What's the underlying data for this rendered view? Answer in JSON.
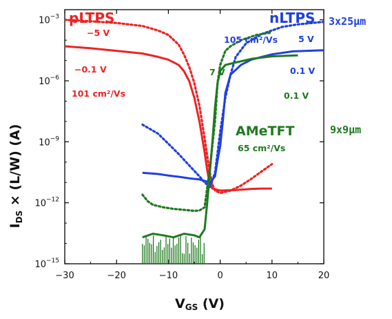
{
  "chart_data": {
    "type": "line",
    "xlabel_main": "V",
    "xlabel_sub": "GS",
    "xlabel_unit": " (V)",
    "ylabel_main_a": "I",
    "ylabel_sub": "DS",
    "ylabel_main_b": " × (L/W)  (A)",
    "xlim": [
      -30,
      20
    ],
    "ylim_log10": [
      -15,
      -2.5
    ],
    "x_ticks": [
      -30,
      -20,
      -10,
      0,
      10,
      20
    ],
    "x_tick_labels": [
      "−30",
      "−20",
      "−10",
      "0",
      "10",
      "20"
    ],
    "y_ticks_exp": [
      -3,
      -6,
      -9,
      -12,
      -15
    ],
    "y_tick_base": "10",
    "y_tick_exps": [
      "−3",
      "−6",
      "−9",
      "−12",
      "−15"
    ],
    "colors": {
      "pLTPS": "#ee2222",
      "nLTPS": "#1f3fe0",
      "AMeTFT": "#1e7a1e"
    },
    "series": [
      {
        "name": "pLTPS",
        "label_key": "pLTPS",
        "vds": "-5 V",
        "style": "dotted",
        "color": "pLTPS",
        "points": [
          [
            -30,
            0.001
          ],
          [
            -25,
            0.00085
          ],
          [
            -20,
            0.0007
          ],
          [
            -15,
            0.0005
          ],
          [
            -12,
            0.0003
          ],
          [
            -10,
            0.00018
          ],
          [
            -8,
            6e-05
          ],
          [
            -7,
            2e-05
          ],
          [
            -6,
            5e-06
          ],
          [
            -5,
            8e-07
          ],
          [
            -4,
            6e-08
          ],
          [
            -3,
            1.5e-09
          ],
          [
            -2.5,
            2e-10
          ],
          [
            -2,
            3e-11
          ],
          [
            -1.5,
            8e-12
          ],
          [
            -1,
            4e-12
          ],
          [
            0,
            3e-12
          ],
          [
            2,
            4e-12
          ],
          [
            4,
            7e-12
          ],
          [
            6,
            1.5e-11
          ],
          [
            8,
            3.5e-11
          ],
          [
            10,
            8e-11
          ]
        ]
      },
      {
        "name": "pLTPS",
        "label_key": "pLTPS",
        "vds": "-0.1 V",
        "style": "solid",
        "color": "pLTPS",
        "points": [
          [
            -30,
            5e-05
          ],
          [
            -25,
            4e-05
          ],
          [
            -20,
            3e-05
          ],
          [
            -15,
            2.2e-05
          ],
          [
            -12,
            1.5e-05
          ],
          [
            -10,
            1.1e-05
          ],
          [
            -8,
            6e-06
          ],
          [
            -7,
            3e-06
          ],
          [
            -6,
            1e-06
          ],
          [
            -5,
            1.5e-07
          ],
          [
            -4,
            1e-08
          ],
          [
            -3,
            3e-10
          ],
          [
            -2.5,
            4e-11
          ],
          [
            -2,
            8e-12
          ],
          [
            -1.5,
            5e-12
          ],
          [
            0,
            4e-12
          ],
          [
            3,
            4.2e-12
          ],
          [
            6,
            4.8e-12
          ],
          [
            8,
            5e-12
          ],
          [
            10,
            5e-12
          ]
        ]
      },
      {
        "name": "nLTPS",
        "label_key": "nLTPS",
        "vds": "5 V",
        "style": "dotted",
        "color": "nLTPS",
        "points": [
          [
            -15,
            7e-09
          ],
          [
            -12,
            2.5e-09
          ],
          [
            -10,
            8e-10
          ],
          [
            -8,
            2.5e-10
          ],
          [
            -6,
            7e-11
          ],
          [
            -4,
            2e-11
          ],
          [
            -3,
            1e-11
          ],
          [
            -2,
            6e-12
          ],
          [
            -1,
            3e-11
          ],
          [
            0,
            3e-09
          ],
          [
            1,
            1.5e-07
          ],
          [
            2,
            2e-06
          ],
          [
            3,
            1.5e-05
          ],
          [
            5,
            7e-05
          ],
          [
            8,
            0.0002
          ],
          [
            12,
            0.00045
          ],
          [
            15,
            0.0006
          ],
          [
            20,
            0.0008
          ]
        ]
      },
      {
        "name": "nLTPS",
        "label_key": "nLTPS",
        "vds": "0.1 V",
        "style": "solid",
        "color": "nLTPS",
        "points": [
          [
            -15,
            3e-11
          ],
          [
            -12,
            2.6e-11
          ],
          [
            -10,
            2.2e-11
          ],
          [
            -8,
            1.9e-11
          ],
          [
            -6,
            1.6e-11
          ],
          [
            -4,
            1.4e-11
          ],
          [
            -3,
            1.2e-11
          ],
          [
            -2,
            1e-11
          ],
          [
            -1,
            2e-11
          ],
          [
            -0.5,
            1.2e-10
          ],
          [
            0,
            6e-10
          ],
          [
            0.5,
            1e-08
          ],
          [
            1,
            2.5e-07
          ],
          [
            2,
            2e-06
          ],
          [
            4,
            6e-06
          ],
          [
            6,
            1.1e-05
          ],
          [
            10,
            2e-05
          ],
          [
            14,
            2.8e-05
          ],
          [
            20,
            3.2e-05
          ]
        ]
      },
      {
        "name": "AMeTFT",
        "label_key": "AMeTFT",
        "vds": "7 V",
        "style": "dotted",
        "color": "AMeTFT",
        "points": [
          [
            -15,
            2.5e-12
          ],
          [
            -14,
            1.2e-12
          ],
          [
            -13,
            8e-13
          ],
          [
            -11,
            6e-13
          ],
          [
            -9,
            5e-13
          ],
          [
            -7,
            4.5e-13
          ],
          [
            -5,
            4e-13
          ],
          [
            -4,
            4.2e-13
          ],
          [
            -3,
            6e-13
          ],
          [
            -2,
            5e-11
          ],
          [
            -1,
            1e-08
          ],
          [
            -0.5,
            8e-07
          ],
          [
            0,
            6e-06
          ],
          [
            1,
            3e-05
          ],
          [
            2,
            5e-05
          ],
          [
            4,
            0.0001
          ],
          [
            7,
            0.00018
          ],
          [
            10,
            0.00024
          ]
        ]
      },
      {
        "name": "AMeTFT",
        "label_key": "AMeTFT",
        "vds": "0.1 V",
        "style": "solid",
        "color": "AMeTFT",
        "points": [
          [
            -15,
            2e-14
          ],
          [
            -13,
            3e-14
          ],
          [
            -11,
            2.5e-14
          ],
          [
            -9,
            2e-14
          ],
          [
            -7,
            3e-14
          ],
          [
            -5,
            2.5e-14
          ],
          [
            -4,
            2e-14
          ],
          [
            -3,
            5e-14
          ],
          [
            -2.5,
            1e-12
          ],
          [
            -2,
            3e-11
          ],
          [
            -1.5,
            1e-09
          ],
          [
            -1,
            5e-08
          ],
          [
            -0.5,
            8e-07
          ],
          [
            0,
            3e-06
          ],
          [
            1,
            6e-06
          ],
          [
            3,
            8e-06
          ],
          [
            6,
            1.2e-05
          ],
          [
            10,
            1.6e-05
          ],
          [
            15,
            1.8e-05
          ]
        ]
      }
    ],
    "noise_region": {
      "series": "AMeTFT",
      "x_start": -15,
      "x_end": -2.8,
      "y_floor": "1e-15",
      "y_top": "3e-14"
    }
  },
  "annotations": {
    "pltps_title": "pLTPS",
    "pltps_minus5": "−5 V",
    "pltps_minus01": "−0.1 V",
    "pltps_mobility": "101 cm²/Vs",
    "nltps_title": "nLTPS",
    "nltps_mobility": "105 cm²/Vs",
    "nltps_5v": "5 V",
    "nltps_01v": "0.1 V",
    "ame_7v": "7 V",
    "ame_01v": "0.1 V",
    "ame_title": "AMeTFT",
    "ame_mobility": "65 cm²/Vs",
    "size_blue": "3x25μm",
    "size_green": "9x9μm"
  }
}
